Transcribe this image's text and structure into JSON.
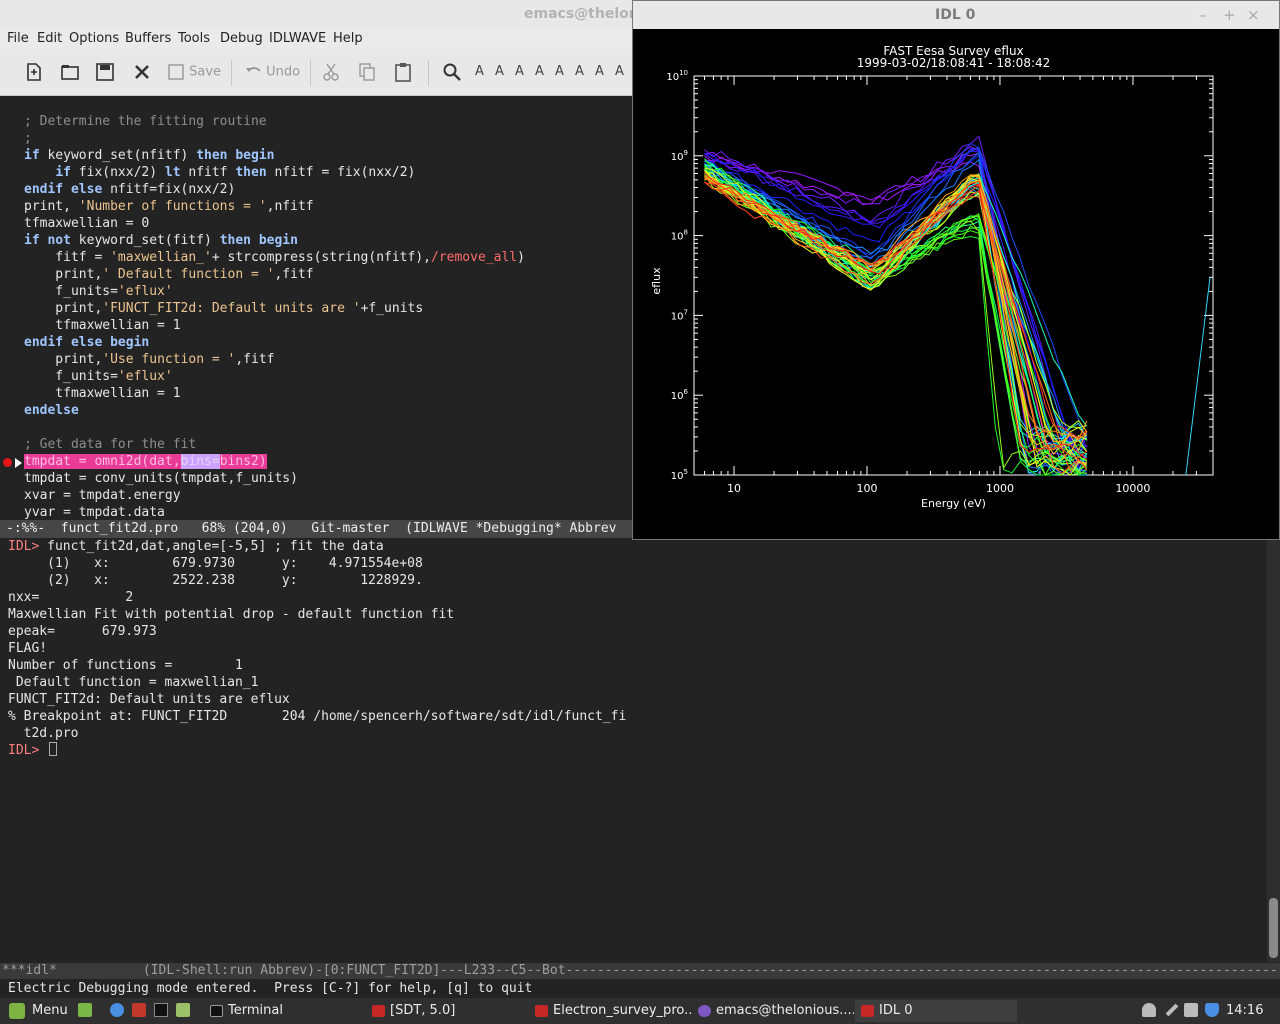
{
  "emacs": {
    "title": "emacs@thelonious",
    "menu": [
      "File",
      "Edit",
      "Options",
      "Buffers",
      "Tools",
      "Debug",
      "IDLWAVE",
      "Help"
    ],
    "toolbar": {
      "save_label": "Save",
      "undo_label": "Undo",
      "face_buttons": [
        "A",
        "A",
        "A",
        "A",
        "A",
        "A",
        "A",
        "A"
      ]
    },
    "source_lines": [
      {
        "segments": [
          {
            "t": "; Determine the fitting routine",
            "c": "cm"
          }
        ]
      },
      {
        "segments": [
          {
            "t": ";",
            "c": "cm"
          }
        ]
      },
      {
        "segments": [
          {
            "t": "if",
            "c": "kw"
          },
          {
            "t": " keyword_set(nfitf) ",
            "c": ""
          },
          {
            "t": "then begin",
            "c": "kw"
          }
        ]
      },
      {
        "segments": [
          {
            "t": "    ",
            "c": ""
          },
          {
            "t": "if",
            "c": "kw"
          },
          {
            "t": " fix(nxx/2) ",
            "c": ""
          },
          {
            "t": "lt",
            "c": "kw"
          },
          {
            "t": " nfitf ",
            "c": ""
          },
          {
            "t": "then",
            "c": "kw"
          },
          {
            "t": " nfitf = fix(nxx/2)",
            "c": ""
          }
        ]
      },
      {
        "segments": [
          {
            "t": "endif else",
            "c": "kw"
          },
          {
            "t": " nfitf=fix(nxx/2)",
            "c": ""
          }
        ]
      },
      {
        "segments": [
          {
            "t": "print, ",
            "c": ""
          },
          {
            "t": "'Number of functions = '",
            "c": "st"
          },
          {
            "t": ",nfitf",
            "c": ""
          }
        ]
      },
      {
        "segments": [
          {
            "t": "tfmaxwellian = 0",
            "c": ""
          }
        ]
      },
      {
        "segments": [
          {
            "t": "if not",
            "c": "kw"
          },
          {
            "t": " keyword_set(fitf) ",
            "c": ""
          },
          {
            "t": "then begin",
            "c": "kw"
          }
        ]
      },
      {
        "segments": [
          {
            "t": "    fitf = ",
            "c": ""
          },
          {
            "t": "'maxwellian_'",
            "c": "st"
          },
          {
            "t": "+ strcompress(string(nfitf),",
            "c": ""
          },
          {
            "t": "/remove_all",
            "c": "rd"
          },
          {
            "t": ")",
            "c": ""
          }
        ]
      },
      {
        "segments": [
          {
            "t": "    print,",
            "c": ""
          },
          {
            "t": "' Default function = '",
            "c": "st"
          },
          {
            "t": ",fitf",
            "c": ""
          }
        ]
      },
      {
        "segments": [
          {
            "t": "    f_units=",
            "c": ""
          },
          {
            "t": "'eflux'",
            "c": "st"
          }
        ]
      },
      {
        "segments": [
          {
            "t": "    print,",
            "c": ""
          },
          {
            "t": "'FUNCT_FIT2d: Default units are '",
            "c": "st"
          },
          {
            "t": "+f_units",
            "c": ""
          }
        ]
      },
      {
        "segments": [
          {
            "t": "    tfmaxwellian = 1",
            "c": ""
          }
        ]
      },
      {
        "segments": [
          {
            "t": "endif else begin",
            "c": "kw"
          }
        ]
      },
      {
        "segments": [
          {
            "t": "    print,",
            "c": ""
          },
          {
            "t": "'Use function = '",
            "c": "st"
          },
          {
            "t": ",fitf",
            "c": ""
          }
        ]
      },
      {
        "segments": [
          {
            "t": "    f_units=",
            "c": ""
          },
          {
            "t": "'eflux'",
            "c": "st"
          }
        ]
      },
      {
        "segments": [
          {
            "t": "    tfmaxwellian = 1",
            "c": ""
          }
        ]
      },
      {
        "segments": [
          {
            "t": "endelse",
            "c": "kw"
          }
        ]
      },
      {
        "segments": [
          {
            "t": "",
            "c": ""
          }
        ]
      },
      {
        "segments": [
          {
            "t": "; Get data for the fit",
            "c": "cm"
          }
        ]
      },
      {
        "segments": [
          {
            "t": "tmpdat = omni2d(dat,",
            "c": "hl"
          },
          {
            "t": "bins=",
            "c": "hl2"
          },
          {
            "t": "bins2)",
            "c": "hl"
          }
        ]
      },
      {
        "segments": [
          {
            "t": "tmpdat = conv_units(tmpdat,f_units)",
            "c": ""
          }
        ]
      },
      {
        "segments": [
          {
            "t": "xvar = tmpdat.energy",
            "c": ""
          }
        ]
      },
      {
        "segments": [
          {
            "t": "yvar = tmpdat.data",
            "c": ""
          }
        ]
      }
    ],
    "modeline_source": "-:%%-  funct_fit2d.pro   68% (204,0)   Git-master  (IDLWAVE *Debugging* Abbrev",
    "shell_lines": [
      {
        "prompt": "IDL> ",
        "text": "funct_fit2d,dat,angle=[-5,5] ; fit the data"
      },
      {
        "prompt": "",
        "text": "     (1)   x:        679.9730      y:    4.971554e+08"
      },
      {
        "prompt": "",
        "text": "     (2)   x:        2522.238      y:        1228929."
      },
      {
        "prompt": "",
        "text": "nxx=           2"
      },
      {
        "prompt": "",
        "text": "Maxwellian Fit with potential drop - default function fit"
      },
      {
        "prompt": "",
        "text": "epeak=      679.973"
      },
      {
        "prompt": "",
        "text": "FLAG!"
      },
      {
        "prompt": "",
        "text": "Number of functions =        1"
      },
      {
        "prompt": "",
        "text": " Default function = maxwellian_1"
      },
      {
        "prompt": "",
        "text": "FUNCT_FIT2d: Default units are eflux"
      },
      {
        "prompt": "",
        "text": "% Breakpoint at: FUNCT_FIT2D       204 /home/spencerh/software/sdt/idl/funct_fi"
      },
      {
        "prompt": "",
        "text": "  t2d.pro"
      },
      {
        "prompt": "IDL> ",
        "text": ""
      }
    ],
    "modeline_shell": "***idl*           (IDL-Shell:run Abbrev)-[0:FUNCT_FIT2D]---L233--C5--Bot-------------------------------------------------------------------------------------------",
    "echo": "Electric Debugging mode entered.  Press [C-?] for help, [q] to quit"
  },
  "idl_window": {
    "title": "IDL 0",
    "buttons": [
      "–",
      "+",
      "×"
    ]
  },
  "chart_data": {
    "type": "line",
    "title": "FAST  Eesa Survey eflux",
    "subtitle": "1999-03-02/18:08:41 - 18:08:42",
    "xlabel": "Energy  (eV)",
    "ylabel": "eflux",
    "x_scale": "log",
    "y_scale": "log",
    "xlim": [
      5,
      40000
    ],
    "ylim": [
      100000,
      10000000000
    ],
    "x_ticks": [
      "10",
      "100",
      "1000",
      "10000"
    ],
    "x_tick_values": [
      10,
      100,
      1000,
      10000
    ],
    "y_tick_exponents": [
      6,
      7,
      8,
      9,
      10
    ],
    "grid": false,
    "num_curves": 48,
    "series_shape": {
      "low_energy_eflux_range": [
        500000000,
        1000000000
      ],
      "dip_energy_eV": 110,
      "dip_eflux": 30000000,
      "peak_energy_eV": 680,
      "peak_eflux": 497155400,
      "cutoff_energy_eV": 2500,
      "colors": "rainbow (purple, blue, cyan, green, yellow, orange, red)"
    },
    "fit_points": [
      {
        "x": 679.973,
        "y": 497155400
      },
      {
        "x": 2522.238,
        "y": 1228929
      }
    ]
  },
  "taskbar": {
    "menu_label": "Menu",
    "tasks": [
      "Terminal",
      "[SDT, 5.0]",
      "Electron_survey_pro...",
      "emacs@thelonious....",
      "IDL 0"
    ],
    "clock": "14:16"
  }
}
